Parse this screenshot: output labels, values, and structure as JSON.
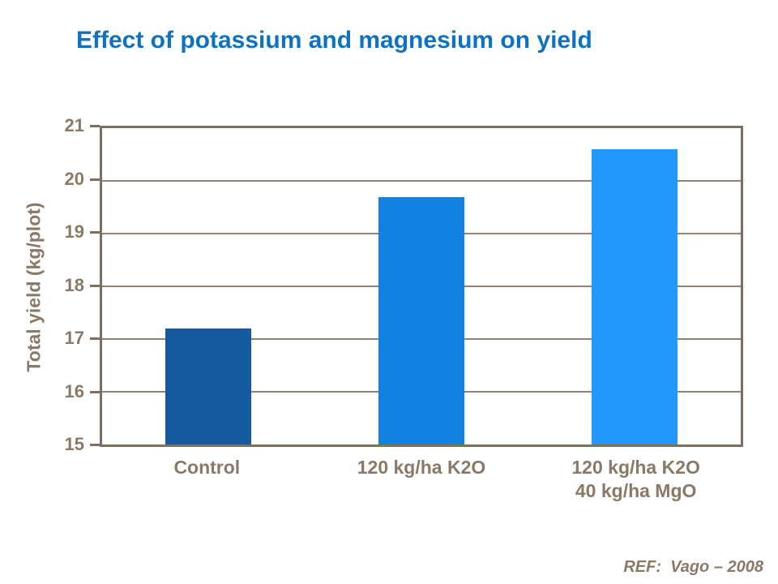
{
  "slide": {
    "title": "Effect of potassium and magnesium on yield",
    "reference": "REF:  Vago – 2008"
  },
  "colors": {
    "title_text": "#0E72C0",
    "frame": "#7B6F60",
    "gridline": "#8E8375",
    "label_text": "#8A7967",
    "bars": [
      "#15599E",
      "#1182E2",
      "#2099FA"
    ]
  },
  "chart_data": {
    "type": "bar",
    "title": "Effect of potassium and magnesium on yield",
    "categories": [
      "Control",
      "120 kg/ha K2O",
      "120 kg/ha K2O\n40 kg/ha MgO"
    ],
    "values": [
      17.2,
      19.7,
      20.6
    ],
    "xlabel": "",
    "ylabel": "Total yield (kg/plot)",
    "ylim": [
      15,
      21
    ],
    "yticks": [
      15,
      16,
      17,
      18,
      19,
      20,
      21
    ],
    "grid": true,
    "legend": "none",
    "annotation": "REF:  Vago – 2008"
  }
}
